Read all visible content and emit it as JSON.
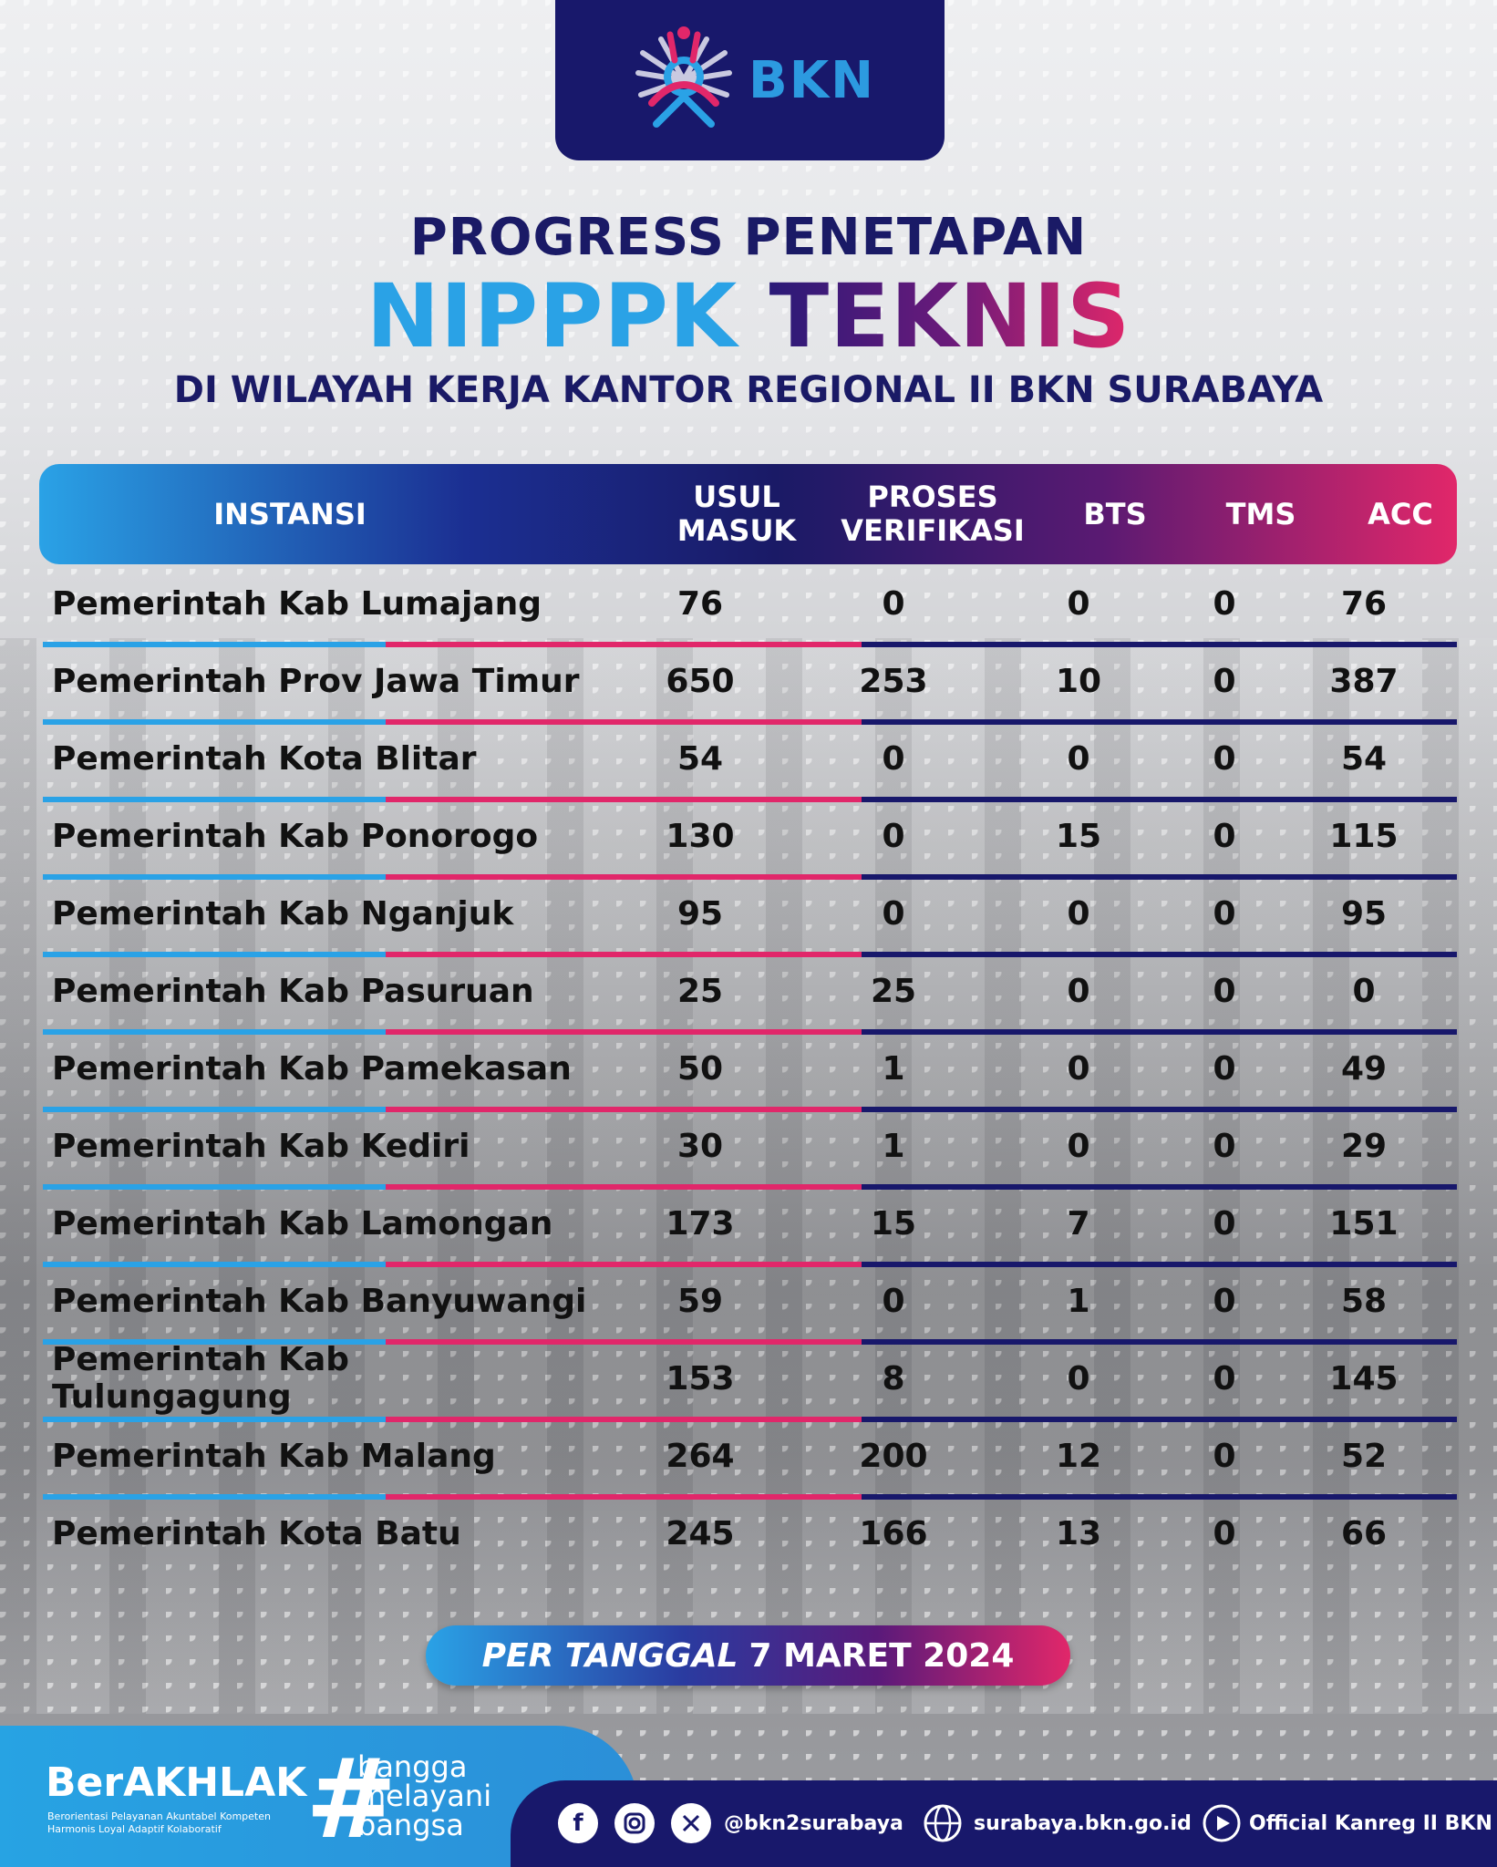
{
  "header": {
    "logo_text": "BKN",
    "title_line1": "PROGRESS PENETAPAN",
    "title_line2a": "NIPPPK",
    "title_line2b": "TEKNIS",
    "title_line3": "DI WILAYAH KERJA KANTOR REGIONAL II BKN SURABAYA"
  },
  "table": {
    "columns": {
      "instansi": "INSTANSI",
      "usul_1": "USUL",
      "usul_2": "MASUK",
      "proses_1": "PROSES",
      "proses_2": "VERIFIKASI",
      "bts": "BTS",
      "tms": "TMS",
      "acc": "ACC"
    },
    "rows": [
      {
        "name": "Pemerintah Kab Lumajang",
        "usul": "76",
        "proses": "0",
        "bts": "0",
        "tms": "0",
        "acc": "76"
      },
      {
        "name": "Pemerintah Prov Jawa Timur",
        "usul": "650",
        "proses": "253",
        "bts": "10",
        "tms": "0",
        "acc": "387"
      },
      {
        "name": "Pemerintah Kota Blitar",
        "usul": "54",
        "proses": "0",
        "bts": "0",
        "tms": "0",
        "acc": "54"
      },
      {
        "name": "Pemerintah Kab Ponorogo",
        "usul": "130",
        "proses": "0",
        "bts": "15",
        "tms": "0",
        "acc": "115"
      },
      {
        "name": "Pemerintah Kab Nganjuk",
        "usul": "95",
        "proses": "0",
        "bts": "0",
        "tms": "0",
        "acc": "95"
      },
      {
        "name": "Pemerintah Kab Pasuruan",
        "usul": "25",
        "proses": "25",
        "bts": "0",
        "tms": "0",
        "acc": "0"
      },
      {
        "name": "Pemerintah Kab Pamekasan",
        "usul": "50",
        "proses": "1",
        "bts": "0",
        "tms": "0",
        "acc": "49"
      },
      {
        "name": "Pemerintah Kab Kediri",
        "usul": "30",
        "proses": "1",
        "bts": "0",
        "tms": "0",
        "acc": "29"
      },
      {
        "name": "Pemerintah Kab Lamongan",
        "usul": "173",
        "proses": "15",
        "bts": "7",
        "tms": "0",
        "acc": "151"
      },
      {
        "name": "Pemerintah Kab Banyuwangi",
        "usul": "59",
        "proses": "0",
        "bts": "1",
        "tms": "0",
        "acc": "58"
      },
      {
        "name": "Pemerintah Kab Tulungagung",
        "usul": "153",
        "proses": "8",
        "bts": "0",
        "tms": "0",
        "acc": "145"
      },
      {
        "name": "Pemerintah Kab Malang",
        "usul": "264",
        "proses": "200",
        "bts": "12",
        "tms": "0",
        "acc": "52"
      },
      {
        "name": "Pemerintah Kota Batu",
        "usul": "245",
        "proses": "166",
        "bts": "13",
        "tms": "0",
        "acc": "66"
      }
    ]
  },
  "date": {
    "prefix": "PER TANGGAL",
    "value": "7 MARET 2024"
  },
  "footer": {
    "berakhlak": "BerAKHLAK",
    "berakhlak_sub": "Berorientasi Pelayanan Akuntabel Kompeten Harmonis Loyal Adaptif Kolaboratif",
    "hash": "#",
    "slogan_1": "bangga",
    "slogan_2": "melayani",
    "slogan_3": "bangsa",
    "handle": "@bkn2surabaya",
    "website": "surabaya.bkn.go.id",
    "youtube": "Official Kanreg II BKN"
  },
  "colors": {
    "navy": "#18186b",
    "blue": "#2aa2e6",
    "pink": "#e1276a"
  }
}
